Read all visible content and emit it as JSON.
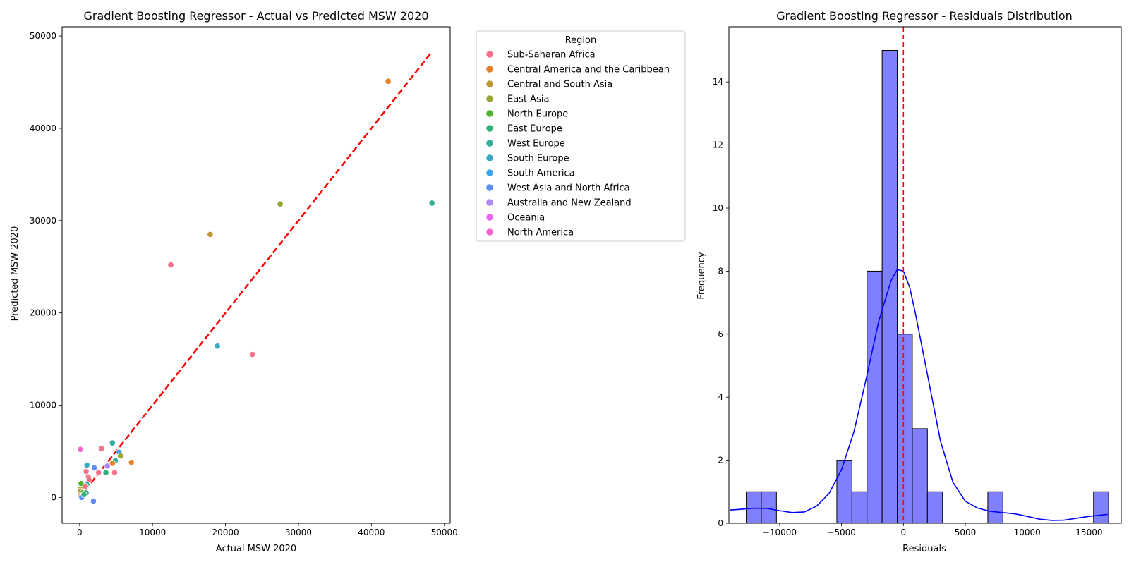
{
  "chart_data": [
    {
      "type": "scatter",
      "title": "Gradient Boosting Regressor - Actual vs Predicted MSW 2020",
      "xlabel": "Actual MSW 2020",
      "ylabel": "Predicted MSW 2020",
      "xlim": [
        -2400,
        50800
      ],
      "ylim": [
        -2800,
        51000
      ],
      "xticks": [
        0,
        10000,
        20000,
        30000,
        40000,
        50000
      ],
      "yticks": [
        0,
        10000,
        20000,
        30000,
        40000,
        50000
      ],
      "grid": false,
      "reference_line": {
        "style": "dashed",
        "color": "#ff0000",
        "from": [
          0,
          0
        ],
        "to": [
          48300,
          48300
        ]
      },
      "legend": {
        "title": "Region",
        "placement": "outside-right",
        "entries": [
          {
            "name": "Sub-Saharan Africa",
            "color": "#f77189"
          },
          {
            "name": "Central America and the Caribbean",
            "color": "#e5802b"
          },
          {
            "name": "Central and South Asia",
            "color": "#bb9832"
          },
          {
            "name": "East Asia",
            "color": "#97a431"
          },
          {
            "name": "North Europe",
            "color": "#50b131"
          },
          {
            "name": "East Europe",
            "color": "#33b07a"
          },
          {
            "name": "West Europe",
            "color": "#35ad9c"
          },
          {
            "name": "South Europe",
            "color": "#38a9c5"
          },
          {
            "name": "South America",
            "color": "#3ba3ec"
          },
          {
            "name": "West Asia and North Africa",
            "color": "#5d8df4"
          },
          {
            "name": "Australia and New Zealand",
            "color": "#ae87f4"
          },
          {
            "name": "Oceania",
            "color": "#e866f4"
          },
          {
            "name": "North America",
            "color": "#f565cc"
          }
        ]
      },
      "points": [
        {
          "x": 42300,
          "y": 45100,
          "color": "#e5802b"
        },
        {
          "x": 48300,
          "y": 31900,
          "color": "#35ad9c"
        },
        {
          "x": 27500,
          "y": 31800,
          "color": "#97a431"
        },
        {
          "x": 17900,
          "y": 28500,
          "color": "#bb9832"
        },
        {
          "x": 12500,
          "y": 25200,
          "color": "#f77189"
        },
        {
          "x": 18900,
          "y": 16400,
          "color": "#38a9c5"
        },
        {
          "x": 23700,
          "y": 15500,
          "color": "#f77189"
        },
        {
          "x": 4500,
          "y": 5900,
          "color": "#35ad9c"
        },
        {
          "x": 3000,
          "y": 5300,
          "color": "#f77189"
        },
        {
          "x": 100,
          "y": 5200,
          "color": "#f565cc"
        },
        {
          "x": 5400,
          "y": 4900,
          "color": "#3ba3ec"
        },
        {
          "x": 5600,
          "y": 4500,
          "color": "#97a431"
        },
        {
          "x": 4900,
          "y": 4000,
          "color": "#35ad9c"
        },
        {
          "x": 7100,
          "y": 3800,
          "color": "#e5802b"
        },
        {
          "x": 4500,
          "y": 3700,
          "color": "#e5802b"
        },
        {
          "x": 1000,
          "y": 3500,
          "color": "#38a9c5"
        },
        {
          "x": 3800,
          "y": 3400,
          "color": "#ae87f4"
        },
        {
          "x": 2000,
          "y": 3200,
          "color": "#5d8df4"
        },
        {
          "x": 900,
          "y": 2800,
          "color": "#f77189"
        },
        {
          "x": 3600,
          "y": 2700,
          "color": "#33b07a"
        },
        {
          "x": 4800,
          "y": 2700,
          "color": "#f77189"
        },
        {
          "x": 2600,
          "y": 2700,
          "color": "#f77189"
        },
        {
          "x": 1200,
          "y": 2200,
          "color": "#f77189"
        },
        {
          "x": 1300,
          "y": 1900,
          "color": "#f77189"
        },
        {
          "x": 200,
          "y": 1500,
          "color": "#50b131"
        },
        {
          "x": 1000,
          "y": 1400,
          "color": "#35ad9c"
        },
        {
          "x": 800,
          "y": 1200,
          "color": "#f77189"
        },
        {
          "x": 100,
          "y": 900,
          "color": "#97a431"
        },
        {
          "x": 100,
          "y": 700,
          "color": "#bb9832"
        },
        {
          "x": 400,
          "y": 500,
          "color": "#50b131"
        },
        {
          "x": 900,
          "y": 500,
          "color": "#33b07a"
        },
        {
          "x": 100,
          "y": 200,
          "color": "#e5802b"
        },
        {
          "x": 200,
          "y": 100,
          "color": "#bb9832"
        },
        {
          "x": 300,
          "y": 0,
          "color": "#5d8df4"
        },
        {
          "x": 1900,
          "y": -400,
          "color": "#5d8df4"
        },
        {
          "x": 600,
          "y": 300,
          "color": "#33b07a"
        }
      ]
    },
    {
      "type": "histogram",
      "title": "Gradient Boosting Regressor - Residuals Distribution",
      "xlabel": "Residuals",
      "ylabel": "Frequency",
      "xlim": [
        -14100,
        17600
      ],
      "ylim": [
        0,
        15.75
      ],
      "xticks": [
        -10000,
        -5000,
        0,
        5000,
        10000,
        15000
      ],
      "xtick_labels": [
        "−10000",
        "−5000",
        "0",
        "5000",
        "10000",
        "15000"
      ],
      "yticks": [
        0,
        2,
        4,
        6,
        8,
        10,
        12,
        14
      ],
      "bar_color": "#8080ff",
      "kde_color": "#0000ff",
      "grid": false,
      "bins": [
        {
          "start": -12700,
          "end": -11480,
          "count": 1
        },
        {
          "start": -11480,
          "end": -10260,
          "count": 1
        },
        {
          "start": -10260,
          "end": -9040,
          "count": 0
        },
        {
          "start": -9040,
          "end": -7820,
          "count": 0
        },
        {
          "start": -7820,
          "end": -6600,
          "count": 0
        },
        {
          "start": -6600,
          "end": -5380,
          "count": 0
        },
        {
          "start": -5380,
          "end": -4160,
          "count": 2
        },
        {
          "start": -4160,
          "end": -2940,
          "count": 1
        },
        {
          "start": -2940,
          "end": -1720,
          "count": 8
        },
        {
          "start": -1720,
          "end": -500,
          "count": 15
        },
        {
          "start": -500,
          "end": 720,
          "count": 6
        },
        {
          "start": 720,
          "end": 1940,
          "count": 3
        },
        {
          "start": 1940,
          "end": 3160,
          "count": 1
        },
        {
          "start": 3160,
          "end": 4380,
          "count": 0
        },
        {
          "start": 4380,
          "end": 5600,
          "count": 0
        },
        {
          "start": 5600,
          "end": 6820,
          "count": 0
        },
        {
          "start": 6820,
          "end": 8040,
          "count": 1
        },
        {
          "start": 8040,
          "end": 9260,
          "count": 0
        },
        {
          "start": 9260,
          "end": 10480,
          "count": 0
        },
        {
          "start": 10480,
          "end": 11700,
          "count": 0
        },
        {
          "start": 11700,
          "end": 12920,
          "count": 0
        },
        {
          "start": 12920,
          "end": 14140,
          "count": 0
        },
        {
          "start": 14140,
          "end": 15360,
          "count": 0
        },
        {
          "start": 15360,
          "end": 16580,
          "count": 1
        }
      ],
      "reference_line": {
        "style": "dashed",
        "color": "#ff0000",
        "x": 0
      },
      "kde_curve": [
        [
          -14000,
          0.42
        ],
        [
          -13000,
          0.45
        ],
        [
          -12000,
          0.48
        ],
        [
          -11000,
          0.47
        ],
        [
          -10000,
          0.4
        ],
        [
          -9000,
          0.34
        ],
        [
          -8000,
          0.36
        ],
        [
          -7000,
          0.55
        ],
        [
          -6000,
          0.95
        ],
        [
          -5000,
          1.7
        ],
        [
          -4000,
          2.9
        ],
        [
          -3000,
          4.6
        ],
        [
          -2000,
          6.4
        ],
        [
          -1000,
          7.7
        ],
        [
          -500,
          8.05
        ],
        [
          0,
          8.0
        ],
        [
          500,
          7.5
        ],
        [
          1000,
          6.6
        ],
        [
          2000,
          4.6
        ],
        [
          3000,
          2.6
        ],
        [
          4000,
          1.3
        ],
        [
          5000,
          0.7
        ],
        [
          6000,
          0.48
        ],
        [
          7000,
          0.38
        ],
        [
          8000,
          0.34
        ],
        [
          9000,
          0.3
        ],
        [
          10000,
          0.22
        ],
        [
          11000,
          0.13
        ],
        [
          12000,
          0.09
        ],
        [
          13000,
          0.1
        ],
        [
          14000,
          0.16
        ],
        [
          15000,
          0.22
        ],
        [
          16500,
          0.28
        ]
      ]
    }
  ]
}
